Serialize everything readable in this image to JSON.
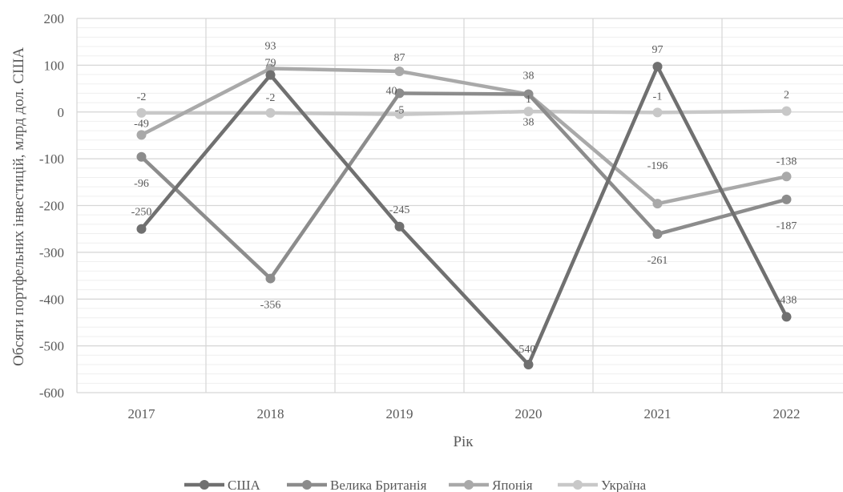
{
  "chart_data": {
    "type": "line",
    "title": "",
    "xlabel": "Рік",
    "ylabel": "Обсяги портфельних інвестицій, млрд дол. США",
    "categories": [
      "2017",
      "2018",
      "2019",
      "2020",
      "2021",
      "2022"
    ],
    "ylim": [
      -600,
      200
    ],
    "ytick_step": 100,
    "yticks": [
      "200",
      "100",
      "0",
      "-100",
      "-200",
      "-300",
      "-400",
      "-500",
      "-600"
    ],
    "grid": true,
    "legend_position": "bottom",
    "series": [
      {
        "name": "США",
        "color": "#707070",
        "values": [
          -250,
          79,
          -245,
          -540,
          97,
          -438
        ],
        "labels": [
          "-250",
          "79",
          "-245",
          "-540",
          "97",
          "-438"
        ]
      },
      {
        "name": "Велика Британія",
        "color": "#8c8c8c",
        "values": [
          -96,
          -356,
          40,
          38,
          -261,
          -187
        ],
        "labels": [
          "-96",
          "-356",
          "40",
          "38",
          "-261",
          "-187"
        ]
      },
      {
        "name": "Японія",
        "color": "#a9a9a9",
        "values": [
          -49,
          93,
          87,
          38,
          -196,
          -138
        ],
        "labels": [
          "-49",
          "93",
          "87",
          "38",
          "-196",
          "-138"
        ]
      },
      {
        "name": "Україна",
        "color": "#c8c8c8",
        "values": [
          -2,
          -2,
          -5,
          1,
          -1,
          2
        ],
        "labels": [
          "-2",
          "-2",
          "-5",
          "1",
          "-1",
          "2"
        ]
      }
    ]
  }
}
